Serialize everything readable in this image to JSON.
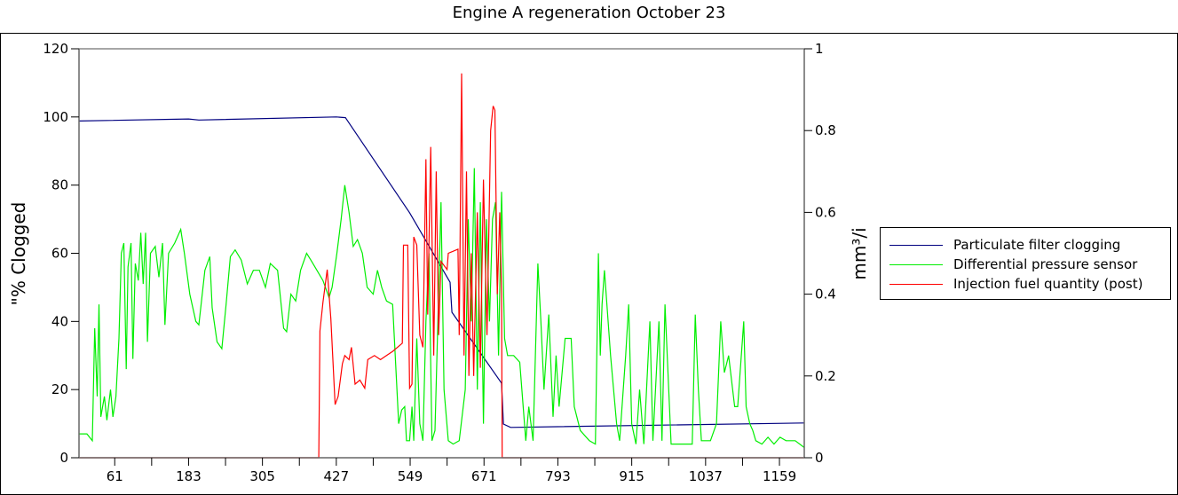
{
  "chart_data": {
    "type": "line",
    "title": "Engine A regeneration October 23",
    "xlabel": "",
    "ylabel": "\"% Clogged",
    "y2label": "mm³/i",
    "xlim": [
      2,
      1200
    ],
    "ylim": [
      0,
      120
    ],
    "y2lim": [
      0,
      1
    ],
    "xticks": [
      61,
      183,
      305,
      427,
      549,
      671,
      793,
      915,
      1037,
      1159
    ],
    "yticks": [
      0,
      20,
      40,
      60,
      80,
      100,
      120
    ],
    "y2ticks": [
      0,
      0.2,
      0.4,
      0.6,
      0.8,
      1
    ],
    "grid": false,
    "legend_position": "right",
    "series": [
      {
        "name": "Particulate filter clogging",
        "axis": "left",
        "color": "#000080",
        "points": [
          [
            2,
            98.8
          ],
          [
            183,
            99.4
          ],
          [
            200,
            99.1
          ],
          [
            427,
            100
          ],
          [
            442,
            99.8
          ],
          [
            548,
            71.9
          ],
          [
            615,
            51.5
          ],
          [
            618,
            42.7
          ],
          [
            700,
            21.9
          ],
          [
            703,
            9.9
          ],
          [
            715,
            8.9
          ],
          [
            1200,
            10.2
          ]
        ]
      },
      {
        "name": "Differential pressure sensor",
        "axis": "left",
        "color": "#00ee00",
        "points": [
          [
            2,
            7
          ],
          [
            15,
            7
          ],
          [
            24,
            5
          ],
          [
            28,
            38
          ],
          [
            32,
            18
          ],
          [
            35,
            45
          ],
          [
            38,
            12
          ],
          [
            44,
            18
          ],
          [
            48,
            11
          ],
          [
            54,
            20
          ],
          [
            58,
            12
          ],
          [
            63,
            18
          ],
          [
            68,
            35
          ],
          [
            72,
            60
          ],
          [
            76,
            63
          ],
          [
            80,
            26
          ],
          [
            83,
            56
          ],
          [
            88,
            63
          ],
          [
            91,
            29
          ],
          [
            95,
            57
          ],
          [
            100,
            52
          ],
          [
            104,
            66
          ],
          [
            108,
            51
          ],
          [
            112,
            66
          ],
          [
            115,
            34
          ],
          [
            120,
            60
          ],
          [
            128,
            62
          ],
          [
            134,
            53
          ],
          [
            140,
            63
          ],
          [
            144,
            39
          ],
          [
            150,
            60
          ],
          [
            160,
            63
          ],
          [
            170,
            67
          ],
          [
            176,
            60
          ],
          [
            185,
            48
          ],
          [
            195,
            40
          ],
          [
            200,
            39
          ],
          [
            210,
            55
          ],
          [
            218,
            59
          ],
          [
            222,
            44
          ],
          [
            230,
            34
          ],
          [
            238,
            32
          ],
          [
            245,
            45
          ],
          [
            252,
            59
          ],
          [
            260,
            61
          ],
          [
            270,
            58
          ],
          [
            280,
            51
          ],
          [
            290,
            55
          ],
          [
            300,
            55
          ],
          [
            310,
            50
          ],
          [
            318,
            57
          ],
          [
            330,
            55
          ],
          [
            340,
            38
          ],
          [
            345,
            37
          ],
          [
            352,
            48
          ],
          [
            360,
            46
          ],
          [
            368,
            55
          ],
          [
            378,
            60
          ],
          [
            385,
            58
          ],
          [
            395,
            55
          ],
          [
            405,
            52
          ],
          [
            415,
            47
          ],
          [
            420,
            50
          ],
          [
            428,
            60
          ],
          [
            435,
            70
          ],
          [
            441,
            80
          ],
          [
            448,
            72
          ],
          [
            455,
            62
          ],
          [
            462,
            64
          ],
          [
            470,
            60
          ],
          [
            478,
            50
          ],
          [
            488,
            48
          ],
          [
            495,
            55
          ],
          [
            502,
            50
          ],
          [
            510,
            46
          ],
          [
            520,
            45
          ],
          [
            530,
            10
          ],
          [
            535,
            14
          ],
          [
            540,
            15
          ],
          [
            543,
            5
          ],
          [
            548,
            5
          ],
          [
            552,
            15
          ],
          [
            555,
            5
          ],
          [
            560,
            35
          ],
          [
            565,
            10
          ],
          [
            570,
            5
          ],
          [
            575,
            40
          ],
          [
            580,
            60
          ],
          [
            585,
            5
          ],
          [
            590,
            8
          ],
          [
            600,
            75
          ],
          [
            605,
            20
          ],
          [
            612,
            5
          ],
          [
            620,
            4
          ],
          [
            630,
            5
          ],
          [
            640,
            20
          ],
          [
            645,
            70
          ],
          [
            650,
            40
          ],
          [
            655,
            85
          ],
          [
            660,
            20
          ],
          [
            665,
            75
          ],
          [
            670,
            10
          ],
          [
            675,
            70
          ],
          [
            680,
            40
          ],
          [
            685,
            70
          ],
          [
            690,
            75
          ],
          [
            695,
            30
          ],
          [
            700,
            78
          ],
          [
            705,
            35
          ],
          [
            710,
            30
          ],
          [
            720,
            30
          ],
          [
            730,
            28
          ],
          [
            740,
            5
          ],
          [
            745,
            15
          ],
          [
            752,
            5
          ],
          [
            760,
            57
          ],
          [
            765,
            40
          ],
          [
            770,
            20
          ],
          [
            778,
            42
          ],
          [
            785,
            12
          ],
          [
            790,
            30
          ],
          [
            795,
            15
          ],
          [
            805,
            35
          ],
          [
            815,
            35
          ],
          [
            820,
            15
          ],
          [
            830,
            8
          ],
          [
            845,
            5
          ],
          [
            855,
            4
          ],
          [
            860,
            60
          ],
          [
            863,
            30
          ],
          [
            866,
            45
          ],
          [
            870,
            55
          ],
          [
            880,
            30
          ],
          [
            890,
            10
          ],
          [
            895,
            5
          ],
          [
            905,
            30
          ],
          [
            910,
            45
          ],
          [
            915,
            10
          ],
          [
            922,
            4
          ],
          [
            928,
            20
          ],
          [
            935,
            4
          ],
          [
            945,
            40
          ],
          [
            950,
            5
          ],
          [
            960,
            40
          ],
          [
            965,
            5
          ],
          [
            970,
            45
          ],
          [
            980,
            4
          ],
          [
            1000,
            4
          ],
          [
            1015,
            4
          ],
          [
            1020,
            42
          ],
          [
            1025,
            20
          ],
          [
            1030,
            5
          ],
          [
            1045,
            5
          ],
          [
            1055,
            10
          ],
          [
            1062,
            40
          ],
          [
            1068,
            25
          ],
          [
            1075,
            30
          ],
          [
            1085,
            15
          ],
          [
            1090,
            15
          ],
          [
            1100,
            40
          ],
          [
            1104,
            15
          ],
          [
            1110,
            10
          ],
          [
            1115,
            8
          ],
          [
            1120,
            5
          ],
          [
            1130,
            4
          ],
          [
            1140,
            6
          ],
          [
            1150,
            4
          ],
          [
            1160,
            6
          ],
          [
            1170,
            5
          ],
          [
            1185,
            5
          ],
          [
            1200,
            3
          ]
        ]
      },
      {
        "name": "Injection fuel quantity (post)",
        "axis": "right",
        "color": "#ff0000",
        "points": [
          [
            2,
            0
          ],
          [
            398,
            0
          ],
          [
            400,
            0.31
          ],
          [
            405,
            0.38
          ],
          [
            412,
            0.46
          ],
          [
            418,
            0.34
          ],
          [
            425,
            0.13
          ],
          [
            430,
            0.15
          ],
          [
            437,
            0.23
          ],
          [
            441,
            0.25
          ],
          [
            448,
            0.24
          ],
          [
            452,
            0.27
          ],
          [
            458,
            0.18
          ],
          [
            466,
            0.19
          ],
          [
            474,
            0.17
          ],
          [
            479,
            0.24
          ],
          [
            490,
            0.25
          ],
          [
            500,
            0.24
          ],
          [
            510,
            0.25
          ],
          [
            520,
            0.26
          ],
          [
            536,
            0.28
          ],
          [
            538,
            0.52
          ],
          [
            545,
            0.52
          ],
          [
            548,
            0.17
          ],
          [
            552,
            0.18
          ],
          [
            555,
            0.54
          ],
          [
            560,
            0.52
          ],
          [
            565,
            0.3
          ],
          [
            570,
            0.27
          ],
          [
            575,
            0.73
          ],
          [
            578,
            0.35
          ],
          [
            583,
            0.76
          ],
          [
            588,
            0.25
          ],
          [
            592,
            0.7
          ],
          [
            596,
            0.3
          ],
          [
            600,
            0.48
          ],
          [
            610,
            0.46
          ],
          [
            612,
            0.5
          ],
          [
            628,
            0.51
          ],
          [
            630,
            0.3
          ],
          [
            634,
            0.94
          ],
          [
            638,
            0.25
          ],
          [
            642,
            0.7
          ],
          [
            646,
            0.2
          ],
          [
            650,
            0.5
          ],
          [
            654,
            0.2
          ],
          [
            660,
            0.6
          ],
          [
            665,
            0.22
          ],
          [
            670,
            0.68
          ],
          [
            676,
            0.3
          ],
          [
            682,
            0.8
          ],
          [
            686,
            0.86
          ],
          [
            689,
            0.85
          ],
          [
            693,
            0.4
          ],
          [
            697,
            0.6
          ],
          [
            700,
            0.4
          ],
          [
            701,
            0
          ],
          [
            1200,
            0
          ]
        ]
      }
    ]
  }
}
